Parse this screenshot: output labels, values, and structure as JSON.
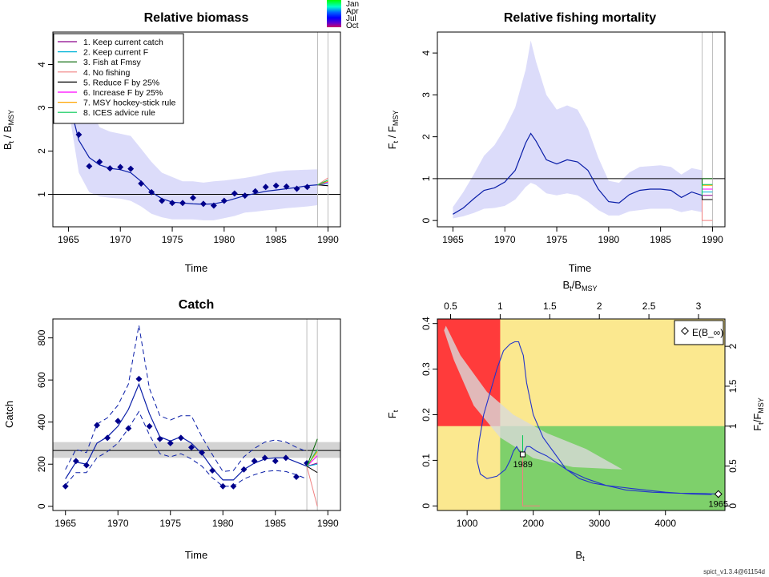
{
  "colors": {
    "ci_fill": "#dcdcfa",
    "series": "#0a1ea8",
    "point": "#00008b",
    "ref": "#000000",
    "red_zone": "#ff3b3b",
    "yellow_zone": "#fbe88f",
    "green_zone": "#7ed06b"
  },
  "season_legend": [
    "Jan",
    "Apr",
    "Jul",
    "Oct"
  ],
  "footer": "spict_v1.3.4@61154d",
  "chart_data": [
    {
      "type": "line",
      "title": "Relative biomass",
      "xlabel": "Time",
      "ylabel": "B_t / B_MSY",
      "xlim": [
        1963.5,
        1991.2
      ],
      "ylim": [
        0.25,
        4.75
      ],
      "x_ticks": [
        1965,
        1970,
        1975,
        1980,
        1985,
        1990
      ],
      "y_ticks": [
        1,
        2,
        3,
        4
      ],
      "reference_line": 1,
      "vlines": [
        1989,
        1990
      ],
      "grid": false,
      "legend": {
        "position": "top-left",
        "entries": [
          {
            "label": "1. Keep current catch",
            "color": "#8b008b"
          },
          {
            "label": "2. Keep current F",
            "color": "#00b4d8"
          },
          {
            "label": "3. Fish at Fmsy",
            "color": "#006400"
          },
          {
            "label": "4. No fishing",
            "color": "#f08080"
          },
          {
            "label": "5. Reduce F by 25%",
            "color": "#000000"
          },
          {
            "label": "6. Increase F by 25%",
            "color": "#ff00ff"
          },
          {
            "label": "7. MSY hockey-stick rule",
            "color": "#ffa500"
          },
          {
            "label": "8. ICES advice rule",
            "color": "#00c853"
          }
        ]
      },
      "estimate": {
        "x": [
          1965,
          1966,
          1967,
          1968,
          1969,
          1970,
          1971,
          1972,
          1973,
          1974,
          1975,
          1976,
          1977,
          1978,
          1979,
          1980,
          1981,
          1982,
          1983,
          1984,
          1985,
          1986,
          1987,
          1988,
          1989
        ],
        "y": [
          3.2,
          2.25,
          1.85,
          1.68,
          1.6,
          1.57,
          1.5,
          1.3,
          1.05,
          0.9,
          0.82,
          0.8,
          0.78,
          0.77,
          0.78,
          0.83,
          0.9,
          0.97,
          1.02,
          1.07,
          1.1,
          1.13,
          1.16,
          1.2,
          1.22
        ]
      },
      "ci_lower": [
        3.0,
        1.5,
        1.05,
        0.95,
        0.92,
        0.9,
        0.85,
        0.72,
        0.55,
        0.47,
        0.42,
        0.42,
        0.42,
        0.4,
        0.4,
        0.45,
        0.5,
        0.58,
        0.6,
        0.63,
        0.65,
        0.68,
        0.7,
        0.72,
        0.75
      ],
      "ci_upper": [
        3.4,
        3.3,
        3.05,
        2.55,
        2.45,
        2.4,
        2.35,
        2.05,
        1.75,
        1.5,
        1.4,
        1.3,
        1.3,
        1.27,
        1.3,
        1.32,
        1.35,
        1.38,
        1.42,
        1.48,
        1.52,
        1.55,
        1.56,
        1.57,
        1.58
      ],
      "observations": {
        "x": [
          1965,
          1966,
          1967,
          1968,
          1969,
          1970,
          1971,
          1972,
          1973,
          1974,
          1975,
          1976,
          1977,
          1978,
          1979,
          1980,
          1981,
          1982,
          1983,
          1984,
          1985,
          1986,
          1987,
          1988
        ],
        "y": [
          3.2,
          2.38,
          1.65,
          1.75,
          1.6,
          1.63,
          1.59,
          1.25,
          1.05,
          0.85,
          0.8,
          0.8,
          0.92,
          0.78,
          0.74,
          0.85,
          1.02,
          0.97,
          1.07,
          1.17,
          1.2,
          1.18,
          1.13,
          1.17
        ]
      },
      "forecast_end": [
        1.2,
        1.25,
        1.3,
        1.38,
        1.2,
        1.28,
        1.3,
        1.33
      ]
    },
    {
      "type": "line",
      "title": "Relative fishing mortality",
      "xlabel": "Time",
      "ylabel": "F_t / F_MSY",
      "xlim": [
        1963.5,
        1991.2
      ],
      "ylim": [
        -0.15,
        4.5
      ],
      "x_ticks": [
        1965,
        1970,
        1975,
        1980,
        1985,
        1990
      ],
      "y_ticks": [
        0,
        1,
        2,
        3,
        4
      ],
      "reference_line": 1,
      "vlines": [
        1989,
        1990
      ],
      "estimate": {
        "x": [
          1965,
          1966,
          1967,
          1968,
          1969,
          1970,
          1971,
          1972,
          1972.5,
          1973,
          1974,
          1975,
          1976,
          1977,
          1978,
          1979,
          1980,
          1981,
          1982,
          1983,
          1984,
          1985,
          1986,
          1987,
          1988,
          1989
        ],
        "y": [
          0.15,
          0.3,
          0.52,
          0.72,
          0.78,
          0.92,
          1.2,
          1.85,
          2.08,
          1.9,
          1.45,
          1.35,
          1.45,
          1.4,
          1.2,
          0.75,
          0.45,
          0.42,
          0.62,
          0.72,
          0.75,
          0.75,
          0.72,
          0.55,
          0.68,
          0.6
        ]
      },
      "ci_lower": [
        0.05,
        0.1,
        0.18,
        0.28,
        0.3,
        0.35,
        0.5,
        0.8,
        0.9,
        0.85,
        0.65,
        0.6,
        0.65,
        0.6,
        0.45,
        0.25,
        0.12,
        0.12,
        0.22,
        0.25,
        0.28,
        0.28,
        0.28,
        0.2,
        0.25,
        0.2
      ],
      "ci_upper": [
        0.32,
        0.68,
        1.1,
        1.55,
        1.8,
        2.2,
        2.7,
        3.6,
        4.3,
        3.8,
        3.0,
        2.65,
        2.75,
        2.65,
        2.2,
        1.5,
        0.95,
        0.9,
        1.15,
        1.28,
        1.3,
        1.32,
        1.28,
        1.1,
        1.25,
        1.2
      ],
      "forecast_end": [
        0.6,
        0.68,
        1.0,
        0.0,
        0.5,
        0.75,
        0.84,
        0.86
      ]
    },
    {
      "type": "line",
      "title": "Catch",
      "xlabel": "Time",
      "ylabel": "Catch",
      "xlim": [
        1963.8,
        1991.2
      ],
      "ylim": [
        -20,
        890
      ],
      "x_ticks": [
        1965,
        1970,
        1975,
        1980,
        1985,
        1990
      ],
      "y_ticks": [
        0,
        200,
        400,
        600,
        800
      ],
      "msy_line": 265,
      "msy_band": [
        230,
        305
      ],
      "vlines": [
        1988,
        1989
      ],
      "estimate": {
        "x": [
          1965,
          1966,
          1967,
          1968,
          1969,
          1970,
          1971,
          1972,
          1973,
          1974,
          1975,
          1976,
          1977,
          1978,
          1979,
          1980,
          1981,
          1982,
          1983,
          1984,
          1985,
          1986,
          1987,
          1988
        ],
        "y": [
          130,
          210,
          200,
          300,
          330,
          380,
          460,
          580,
          440,
          330,
          310,
          330,
          300,
          250,
          180,
          125,
          125,
          175,
          205,
          225,
          230,
          230,
          210,
          190
        ]
      },
      "ci_lower": [
        100,
        160,
        160,
        230,
        260,
        300,
        370,
        450,
        340,
        250,
        235,
        250,
        225,
        190,
        135,
        95,
        95,
        130,
        150,
        165,
        170,
        165,
        150,
        130
      ],
      "ci_upper": [
        175,
        270,
        255,
        390,
        420,
        480,
        580,
        860,
        560,
        430,
        410,
        430,
        430,
        330,
        245,
        165,
        170,
        235,
        275,
        305,
        315,
        305,
        280,
        260
      ],
      "observations": {
        "x": [
          1965,
          1966,
          1967,
          1968,
          1969,
          1970,
          1971,
          1972,
          1973,
          1974,
          1975,
          1976,
          1977,
          1978,
          1979,
          1980,
          1981,
          1982,
          1983,
          1984,
          1985,
          1986,
          1987,
          1988
        ],
        "y": [
          95,
          215,
          195,
          385,
          325,
          405,
          370,
          605,
          380,
          320,
          300,
          325,
          280,
          255,
          170,
          95,
          95,
          175,
          215,
          230,
          215,
          230,
          140,
          205
        ]
      },
      "forecast_end": [
        205,
        200,
        320,
        0,
        160,
        240,
        260,
        270
      ]
    },
    {
      "type": "line",
      "title": "",
      "xlabel": "B_t",
      "ylabel": "F_t",
      "top_axis_label": "B_t / B_MSY",
      "right_axis_label": "F_t / F_MSY",
      "xlim": [
        550,
        4900
      ],
      "ylim": [
        -0.01,
        0.41
      ],
      "x_ticks": [
        1000,
        2000,
        3000,
        4000
      ],
      "y_ticks": [
        0.0,
        0.1,
        0.2,
        0.3,
        0.4
      ],
      "top_ticks": [
        0.5,
        1,
        1.5,
        2,
        2.5,
        3
      ],
      "right_ticks": [
        0,
        0.5,
        1,
        1.5,
        2
      ],
      "bmsy": 1500,
      "fmsy": 0.175,
      "legend": {
        "position": "top-right",
        "entries": [
          {
            "label": "E(B_∞)"
          }
        ]
      },
      "trajectory": {
        "x": [
          4700,
          4400,
          4000,
          3500,
          3100,
          2800,
          2500,
          2300,
          2150,
          2000,
          1900,
          1850,
          1800,
          1780,
          1720,
          1650,
          1550,
          1450,
          1350,
          1250,
          1180,
          1150,
          1200,
          1300,
          1450,
          1580,
          1650,
          1700,
          1750,
          1790,
          1830,
          1870,
          1900,
          1950,
          2050,
          2200,
          2400,
          2550,
          2700,
          2900,
          3100,
          3400,
          3800,
          4200,
          4600,
          4800
        ],
        "y": [
          0.025,
          0.026,
          0.03,
          0.038,
          0.045,
          0.06,
          0.08,
          0.12,
          0.15,
          0.2,
          0.27,
          0.33,
          0.35,
          0.36,
          0.36,
          0.355,
          0.34,
          0.3,
          0.25,
          0.2,
          0.14,
          0.1,
          0.07,
          0.06,
          0.065,
          0.08,
          0.1,
          0.12,
          0.13,
          0.12,
          0.115,
          0.12,
          0.13,
          0.13,
          0.12,
          0.11,
          0.09,
          0.075,
          0.06,
          0.05,
          0.045,
          0.035,
          0.03,
          0.028,
          0.027,
          0.026
        ]
      },
      "point_labels": [
        "1965",
        "1989"
      ],
      "start_point": [
        4800,
        0.026
      ],
      "end_point": [
        1840,
        0.113
      ]
    }
  ]
}
